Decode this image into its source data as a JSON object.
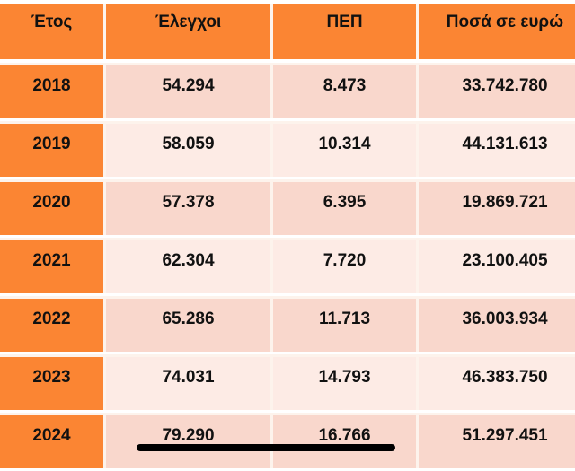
{
  "table": {
    "headers": [
      "Έτος",
      "Έλεγχοι",
      "ΠΕΠ",
      "Ποσά σε ευρώ"
    ],
    "rows": [
      [
        "2018",
        "54.294",
        "8.473",
        "33.742.780"
      ],
      [
        "2019",
        "58.059",
        "10.314",
        "44.131.613"
      ],
      [
        "2020",
        "57.378",
        "6.395",
        "19.869.721"
      ],
      [
        "2021",
        "62.304",
        "7.720",
        "23.100.405"
      ],
      [
        "2022",
        "65.286",
        "11.713",
        "36.003.934"
      ],
      [
        "2023",
        "74.031",
        "14.793",
        "46.383.750"
      ],
      [
        "2024",
        "79.290",
        "16.766",
        "51.297.451"
      ]
    ]
  },
  "colors": {
    "header": "#fb8533",
    "row_dark": "#f9d7cc",
    "row_light": "#fdebe5"
  }
}
